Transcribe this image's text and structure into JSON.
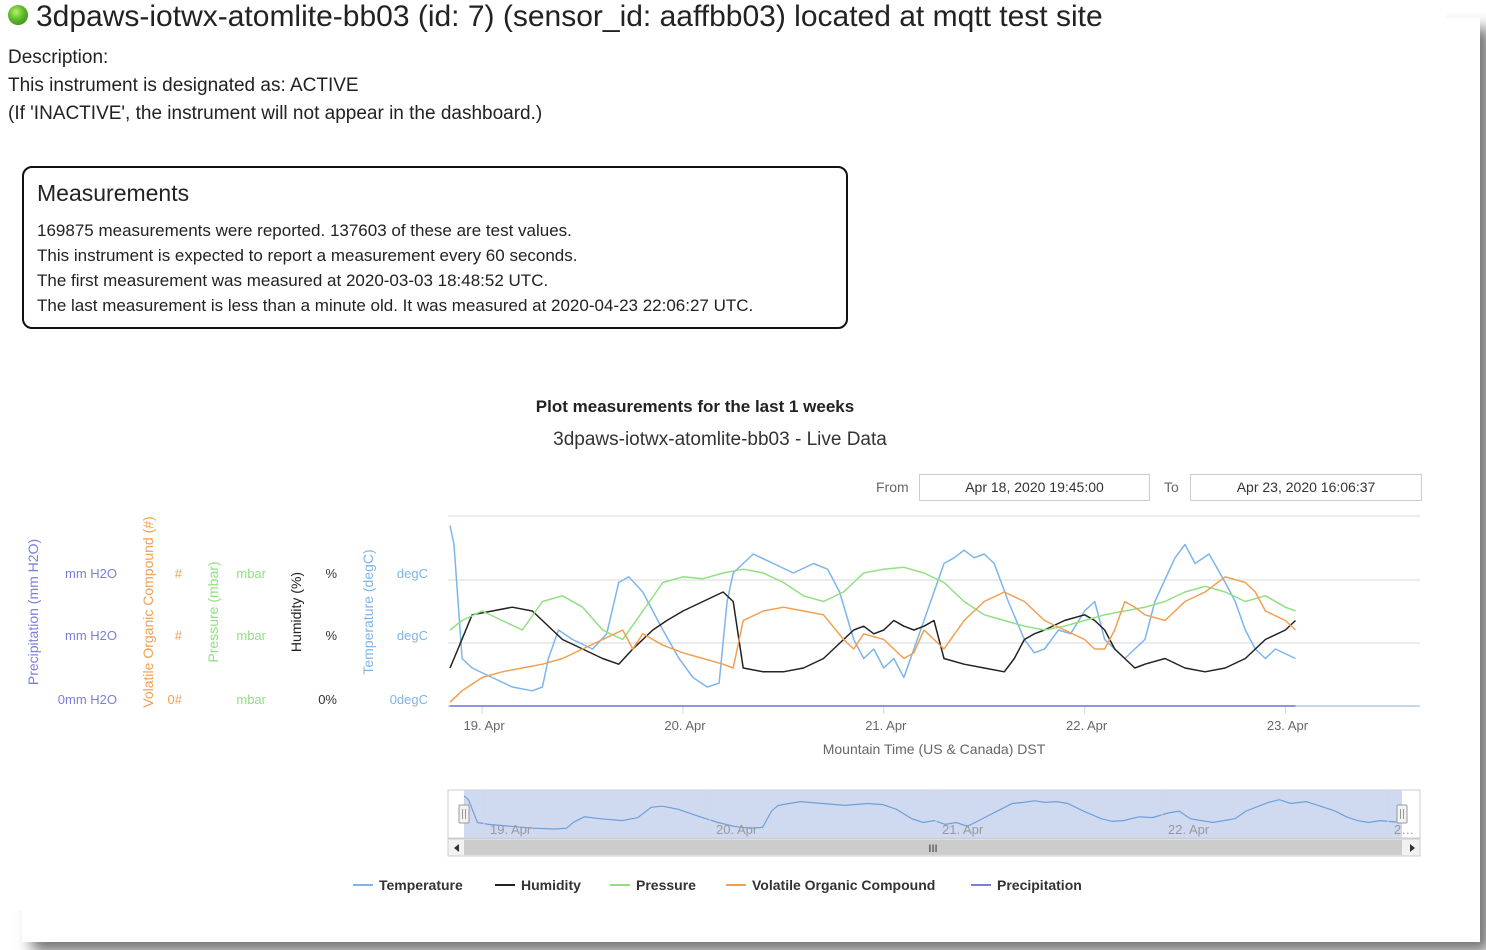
{
  "header": {
    "title": "3dpaws-iotwx-atomlite-bb03 (id: 7) (sensor_id: aaffbb03) located at mqtt test site",
    "status_color": "#5cb82a"
  },
  "description": {
    "label": "Description:",
    "designation": "This instrument is designated as: ACTIVE",
    "note": "(If 'INACTIVE', the instrument will not appear in the dashboard.)"
  },
  "measurements": {
    "heading": "Measurements",
    "lines": [
      "169875 measurements were reported. 137603 of these are test values.",
      "This instrument is expected to report a measurement every 60 seconds.",
      "The first measurement was measured at 2020-03-03 18:48:52 UTC.",
      "The last measurement is less than a minute old. It was measured at 2020-04-23 22:06:27 UTC."
    ]
  },
  "plot": {
    "heading": "Plot measurements for the last 1 weeks",
    "chart_title": "3dpaws-iotwx-atomlite-bb03 - Live Data",
    "range": {
      "from_label": "From",
      "from_value": "Apr 18, 2020 19:45:00",
      "to_label": "To",
      "to_value": "Apr 23, 2020 16:06:37"
    },
    "navigator_ticks": [
      "19. Apr",
      "20. Apr",
      "21. Apr",
      "22. Apr",
      "2…"
    ],
    "scroll_grip": "III"
  },
  "chart_data": {
    "type": "line",
    "title": "3dpaws-iotwx-atomlite-bb03 - Live Data",
    "xlabel": "Mountain Time (US & Canada) DST",
    "x_ticks": [
      "19. Apr",
      "20. Apr",
      "21. Apr",
      "22. Apr",
      "23. Apr"
    ],
    "x_tick_days": [
      19,
      20,
      21,
      22,
      23
    ],
    "xlim": [
      18.83,
      23.67
    ],
    "grid": true,
    "legend_position": "bottom-center",
    "y_axes": [
      {
        "title": "Precipitation (mm H2O)",
        "ticks": [
          "mm H2O",
          "mm H2O",
          "0mm H2O"
        ],
        "color": "#7b7fd8"
      },
      {
        "title": "Volatile Organic Compound (#)",
        "ticks": [
          "#",
          "#",
          "0#"
        ],
        "color": "#f0a050"
      },
      {
        "title": "Pressure (mbar)",
        "ticks": [
          "mbar",
          "mbar",
          "mbar"
        ],
        "color": "#90e080"
      },
      {
        "title": "Humidity (%)",
        "ticks": [
          "%",
          "%",
          "0%"
        ],
        "color": "#222222"
      },
      {
        "title": "Temperature (degC)",
        "ticks": [
          "degC",
          "degC",
          "0degC"
        ],
        "color": "#7cb5ec"
      }
    ],
    "series": [
      {
        "name": "Temperature",
        "color": "#7cb5ec",
        "x": [
          18.84,
          18.86,
          18.9,
          18.95,
          19.05,
          19.15,
          19.25,
          19.3,
          19.33,
          19.38,
          19.45,
          19.55,
          19.62,
          19.68,
          19.73,
          19.8,
          19.9,
          19.98,
          20.05,
          20.12,
          20.18,
          20.22,
          20.25,
          20.3,
          20.35,
          20.45,
          20.55,
          20.65,
          20.72,
          20.78,
          20.85,
          20.9,
          20.95,
          21.0,
          21.05,
          21.1,
          21.15,
          21.2,
          21.25,
          21.3,
          21.35,
          21.4,
          21.45,
          21.5,
          21.55,
          21.62,
          21.7,
          21.75,
          21.8,
          21.87,
          21.93,
          22.0,
          22.05,
          22.1,
          22.2,
          22.25,
          22.3,
          22.35,
          22.45,
          22.5,
          22.55,
          22.62,
          22.7,
          22.75,
          22.8,
          22.85,
          22.9,
          22.95,
          23.05
        ],
        "y": [
          95,
          85,
          25,
          20,
          15,
          10,
          8,
          10,
          25,
          40,
          35,
          30,
          38,
          65,
          68,
          60,
          40,
          25,
          15,
          10,
          12,
          55,
          70,
          75,
          80,
          75,
          70,
          75,
          72,
          60,
          35,
          25,
          30,
          20,
          25,
          15,
          30,
          45,
          60,
          75,
          78,
          82,
          78,
          80,
          75,
          55,
          35,
          28,
          30,
          40,
          38,
          50,
          55,
          35,
          25,
          30,
          35,
          55,
          78,
          85,
          75,
          80,
          65,
          55,
          40,
          30,
          25,
          30,
          25
        ]
      },
      {
        "name": "Humidity",
        "color": "#222222",
        "x": [
          18.84,
          18.88,
          18.95,
          19.05,
          19.15,
          19.25,
          19.3,
          19.35,
          19.4,
          19.5,
          19.6,
          19.68,
          19.75,
          19.85,
          19.92,
          20.0,
          20.1,
          20.2,
          20.25,
          20.3,
          20.4,
          20.5,
          20.6,
          20.7,
          20.8,
          20.85,
          20.9,
          20.95,
          21.0,
          21.05,
          21.1,
          21.15,
          21.2,
          21.25,
          21.3,
          21.4,
          21.5,
          21.6,
          21.65,
          21.7,
          21.75,
          21.8,
          21.9,
          22.0,
          22.05,
          22.1,
          22.15,
          22.2,
          22.25,
          22.3,
          22.4,
          22.5,
          22.6,
          22.7,
          22.8,
          22.9,
          23.0,
          23.05
        ],
        "y": [
          20,
          30,
          48,
          50,
          52,
          50,
          45,
          40,
          35,
          30,
          25,
          22,
          30,
          40,
          45,
          50,
          55,
          60,
          55,
          20,
          18,
          18,
          20,
          25,
          35,
          40,
          42,
          38,
          40,
          45,
          42,
          40,
          42,
          45,
          25,
          22,
          20,
          18,
          25,
          35,
          38,
          40,
          45,
          48,
          45,
          40,
          30,
          25,
          20,
          22,
          25,
          20,
          18,
          20,
          25,
          35,
          40,
          45
        ]
      },
      {
        "name": "Pressure",
        "color": "#90e080",
        "x": [
          18.84,
          18.9,
          19.0,
          19.1,
          19.2,
          19.3,
          19.4,
          19.5,
          19.6,
          19.7,
          19.8,
          19.9,
          20.0,
          20.1,
          20.2,
          20.3,
          20.4,
          20.5,
          20.6,
          20.7,
          20.8,
          20.9,
          21.0,
          21.1,
          21.2,
          21.3,
          21.4,
          21.5,
          21.6,
          21.7,
          21.8,
          21.9,
          22.0,
          22.1,
          22.2,
          22.3,
          22.4,
          22.5,
          22.6,
          22.7,
          22.8,
          22.9,
          23.0,
          23.05
        ],
        "y": [
          40,
          45,
          50,
          45,
          40,
          55,
          58,
          52,
          40,
          35,
          50,
          65,
          68,
          67,
          70,
          72,
          70,
          65,
          58,
          55,
          60,
          70,
          72,
          73,
          70,
          65,
          55,
          48,
          45,
          42,
          40,
          42,
          45,
          48,
          50,
          52,
          55,
          60,
          63,
          60,
          55,
          58,
          52,
          50
        ]
      },
      {
        "name": "Volatile Organic Compound",
        "color": "#f0a050",
        "x": [
          18.84,
          18.9,
          19.0,
          19.1,
          19.2,
          19.3,
          19.4,
          19.5,
          19.6,
          19.7,
          19.75,
          19.8,
          19.9,
          20.0,
          20.1,
          20.2,
          20.25,
          20.3,
          20.4,
          20.5,
          20.6,
          20.7,
          20.8,
          20.85,
          20.9,
          21.0,
          21.05,
          21.1,
          21.15,
          21.2,
          21.25,
          21.3,
          21.4,
          21.5,
          21.6,
          21.7,
          21.8,
          21.9,
          22.0,
          22.05,
          22.1,
          22.15,
          22.2,
          22.25,
          22.3,
          22.4,
          22.5,
          22.6,
          22.7,
          22.8,
          22.85,
          22.9,
          23.0,
          23.05
        ],
        "y": [
          2,
          8,
          15,
          18,
          20,
          22,
          25,
          30,
          35,
          40,
          30,
          38,
          32,
          28,
          25,
          22,
          20,
          45,
          50,
          52,
          50,
          48,
          35,
          30,
          38,
          35,
          30,
          25,
          28,
          40,
          35,
          30,
          45,
          55,
          60,
          55,
          45,
          40,
          35,
          30,
          30,
          40,
          55,
          52,
          48,
          45,
          55,
          60,
          68,
          65,
          60,
          50,
          45,
          40
        ]
      },
      {
        "name": "Precipitation",
        "color": "#7b7fd8",
        "x": [
          18.84,
          23.05
        ],
        "y": [
          0,
          0
        ]
      }
    ]
  },
  "legend": {
    "items": [
      {
        "label": "Temperature",
        "color": "#7cb5ec"
      },
      {
        "label": "Humidity",
        "color": "#222222"
      },
      {
        "label": "Pressure",
        "color": "#90e080"
      },
      {
        "label": "Volatile Organic Compound",
        "color": "#f0a050"
      },
      {
        "label": "Precipitation",
        "color": "#7b7fd8"
      }
    ]
  }
}
